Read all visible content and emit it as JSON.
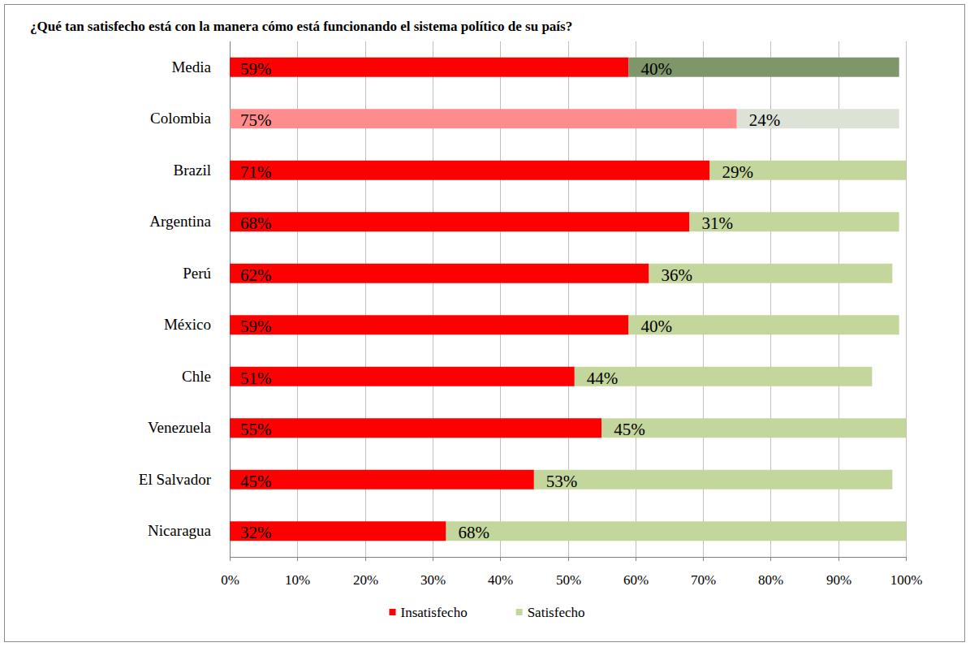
{
  "chart_data": {
    "type": "bar",
    "orientation": "horizontal",
    "stacked": true,
    "title": "¿Qué tan satisfecho está con la manera cómo está funcionando el sistema político de su país?",
    "categories": [
      "Media",
      "Colombia",
      "Brazil",
      "Argentina",
      "Perú",
      "México",
      "Chle",
      "Venezuela",
      "El Salvador",
      "Nicaragua"
    ],
    "series": [
      {
        "name": "Insatisfecho",
        "color": "#ff0000",
        "colors": [
          "#ff0000",
          "#ff8c8c",
          "#ff0000",
          "#ff0000",
          "#ff0000",
          "#ff0000",
          "#ff0000",
          "#ff0000",
          "#ff0000",
          "#ff0000"
        ],
        "values": [
          59,
          75,
          71,
          68,
          62,
          59,
          51,
          55,
          45,
          32
        ],
        "value_labels": [
          "59%",
          "75%",
          "71%",
          "68%",
          "62%",
          "59%",
          "51%",
          "55%",
          "45%",
          "32%"
        ]
      },
      {
        "name": "Satisfecho",
        "color": "#c3d69b",
        "colors": [
          "#7f966a",
          "#dde2d6",
          "#c3d69b",
          "#c3d69b",
          "#c3d69b",
          "#c3d69b",
          "#c3d69b",
          "#c3d69b",
          "#c3d69b",
          "#c3d69b"
        ],
        "values": [
          40,
          24,
          29,
          31,
          36,
          40,
          44,
          45,
          53,
          68
        ],
        "value_labels": [
          "40%",
          "24%",
          "29%",
          "31%",
          "36%",
          "40%",
          "44%",
          "45%",
          "53%",
          "68%"
        ]
      }
    ],
    "xlim": [
      0,
      100
    ],
    "xticks": [
      {
        "value": 0,
        "label": "0%"
      },
      {
        "value": 10,
        "label": "10%"
      },
      {
        "value": 20,
        "label": "20%"
      },
      {
        "value": 30,
        "label": "30%"
      },
      {
        "value": 40,
        "label": "40%"
      },
      {
        "value": 50,
        "label": "50%"
      },
      {
        "value": 60,
        "label": "60%"
      },
      {
        "value": 70,
        "label": "70%"
      },
      {
        "value": 80,
        "label": "80%"
      },
      {
        "value": 90,
        "label": "90%"
      },
      {
        "value": 100,
        "label": "100%"
      }
    ],
    "grid": true,
    "data_labels": true,
    "legend": "bottom"
  }
}
